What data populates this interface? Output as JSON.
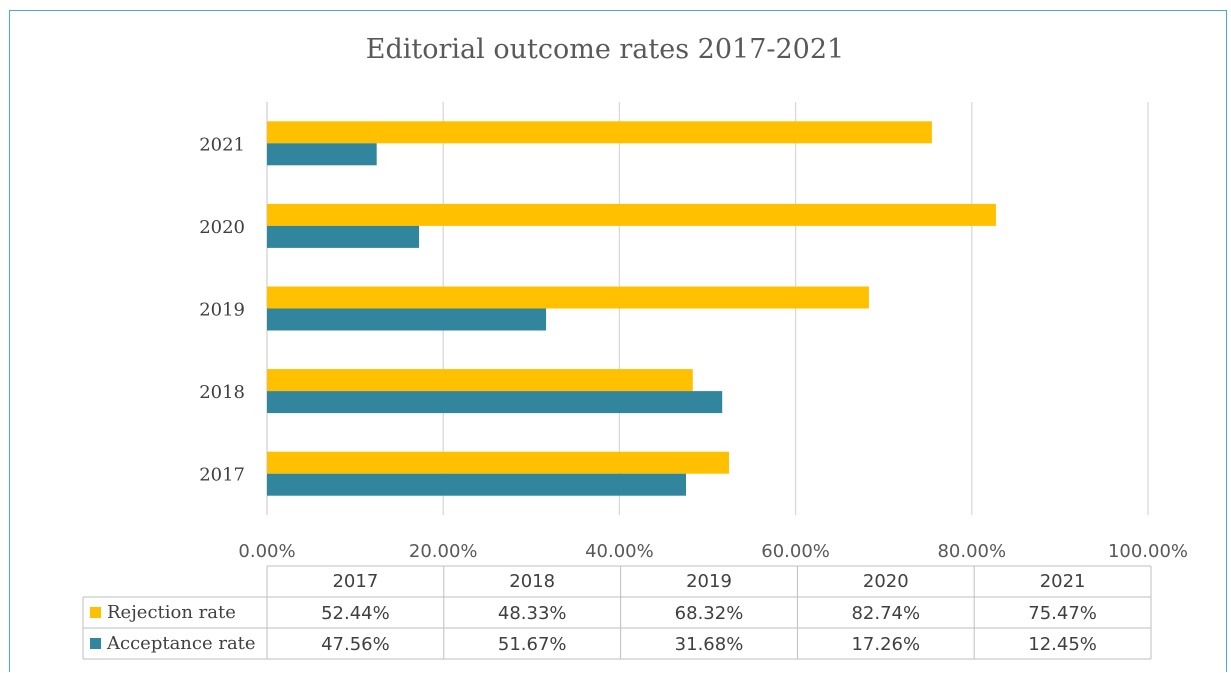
{
  "colors": {
    "rejection": "#ffc000",
    "acceptance": "#31859c",
    "grid": "#d9d9d9",
    "border": "#4bacc6"
  },
  "chart_data": {
    "type": "bar",
    "orientation": "horizontal",
    "title": "Editorial outcome rates 2017-2021",
    "categories": [
      "2017",
      "2018",
      "2019",
      "2020",
      "2021"
    ],
    "series": [
      {
        "name": "Rejection rate",
        "values": [
          52.44,
          48.33,
          68.32,
          82.74,
          75.47
        ],
        "labels": [
          "52.44%",
          "48.33%",
          "68.32%",
          "82.74%",
          "75.47%"
        ]
      },
      {
        "name": "Acceptance rate",
        "values": [
          47.56,
          51.67,
          31.68,
          17.26,
          12.45
        ],
        "labels": [
          "47.56%",
          "51.67%",
          "31.68%",
          "17.26%",
          "12.45%"
        ]
      }
    ],
    "xlim": [
      0,
      100
    ],
    "xticks": [
      "0.00%",
      "20.00%",
      "40.00%",
      "60.00%",
      "80.00%",
      "100.00%"
    ],
    "grid": true,
    "data_table": true
  }
}
